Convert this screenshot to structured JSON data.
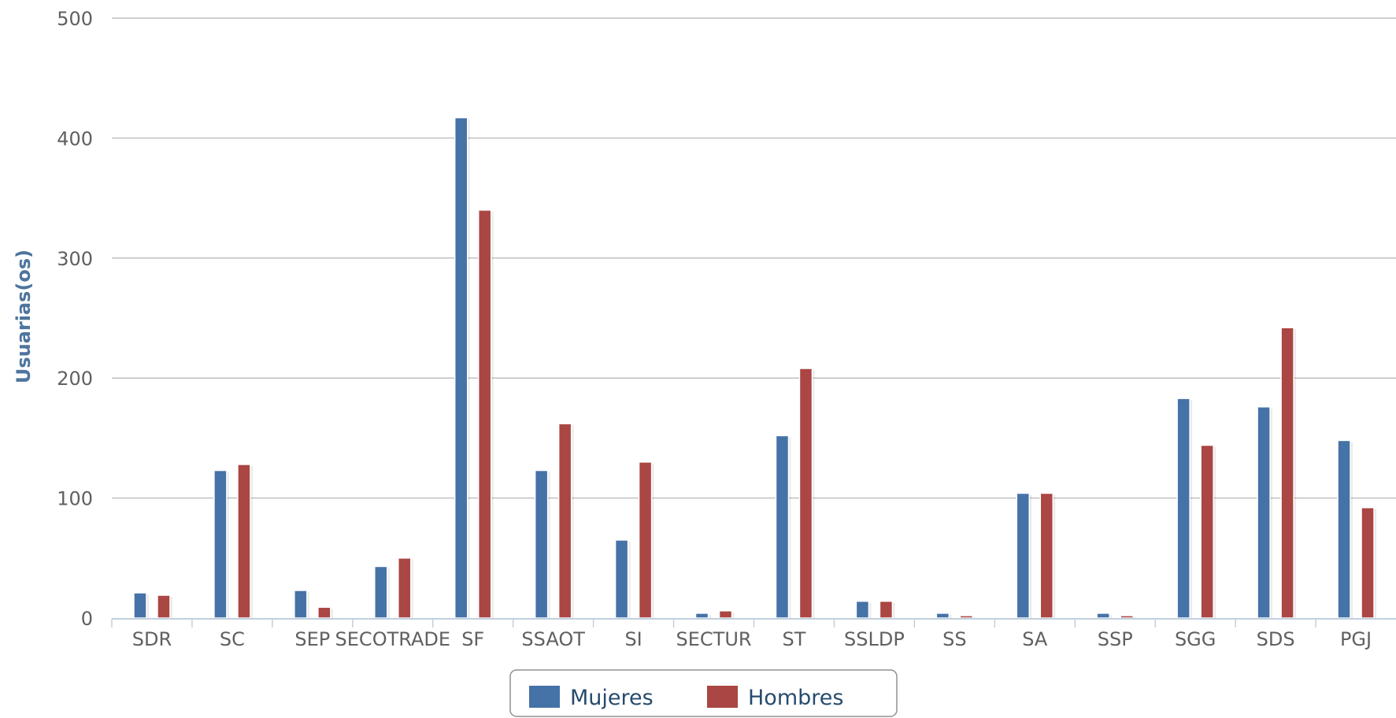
{
  "chart_data": {
    "type": "bar",
    "ylabel": "Usuarias(os)",
    "xlabel": "",
    "title": "",
    "ylim": [
      0,
      500
    ],
    "yticks": [
      0,
      100,
      200,
      300,
      400,
      500
    ],
    "grid": true,
    "legend_position": "bottom-center",
    "categories": [
      "SDR",
      "SC",
      "SEP",
      "SECOTRADE",
      "SF",
      "SSAOT",
      "SI",
      "SECTUR",
      "ST",
      "SSLDP",
      "SS",
      "SA",
      "SSP",
      "SGG",
      "SDS",
      "PGJ"
    ],
    "series": [
      {
        "name": "Mujeres",
        "color": "#4572A7",
        "values": [
          21,
          123,
          23,
          43,
          417,
          123,
          65,
          4,
          152,
          14,
          4,
          104,
          4,
          183,
          176,
          148
        ]
      },
      {
        "name": "Hombres",
        "color": "#AA4643",
        "values": [
          19,
          128,
          9,
          50,
          340,
          162,
          130,
          6,
          208,
          14,
          2,
          104,
          2,
          144,
          242,
          92
        ]
      }
    ]
  }
}
